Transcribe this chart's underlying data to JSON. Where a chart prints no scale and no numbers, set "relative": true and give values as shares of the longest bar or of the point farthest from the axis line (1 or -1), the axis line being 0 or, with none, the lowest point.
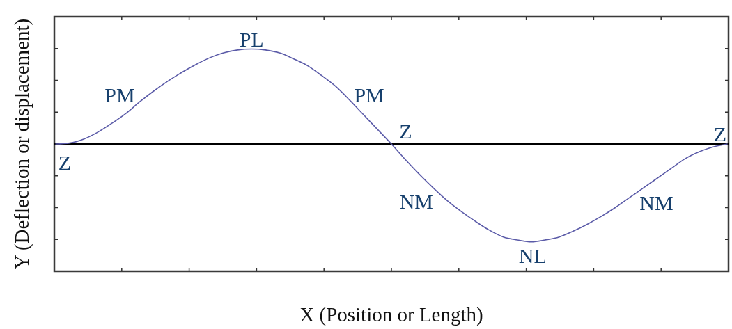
{
  "chart_data": {
    "type": "line",
    "xlabel": "X (Position or Length)",
    "ylabel": "Y (Deflection or displacement)",
    "relative": true,
    "categories": [
      null,
      null,
      null,
      null,
      null,
      null,
      null,
      null,
      null,
      null,
      null,
      null,
      null,
      null,
      null,
      null,
      null,
      null,
      null,
      null,
      null,
      null,
      null,
      null,
      null,
      null,
      null,
      null,
      null,
      null,
      null,
      null,
      null,
      null,
      null,
      null,
      null,
      null,
      null,
      null,
      null,
      null,
      null,
      null,
      null,
      null,
      null,
      null,
      null
    ],
    "values": [
      0,
      0.01,
      0.05,
      0.12,
      0.21,
      0.31,
      0.43,
      0.54,
      0.64,
      0.73,
      0.81,
      0.88,
      0.93,
      0.96,
      0.97,
      0.96,
      0.93,
      0.87,
      0.8,
      0.7,
      0.59,
      0.45,
      0.3,
      0.15,
      0,
      -0.16,
      -0.31,
      -0.45,
      -0.58,
      -0.69,
      -0.79,
      -0.88,
      -0.95,
      -0.98,
      -1,
      -0.98,
      -0.95,
      -0.89,
      -0.82,
      -0.74,
      -0.65,
      -0.55,
      -0.45,
      -0.35,
      -0.25,
      -0.15,
      -0.08,
      -0.03,
      0
    ],
    "color": "#5b5ba8",
    "annotations": [
      {
        "text": "Z",
        "y": 0
      },
      "PM",
      {
        "text": "PL",
        "y": 0.97
      },
      "PM",
      "Z",
      "NM",
      {
        "text": "NL",
        "y": -1
      },
      "NM",
      {
        "text": "Z",
        "y": 0
      }
    ]
  }
}
